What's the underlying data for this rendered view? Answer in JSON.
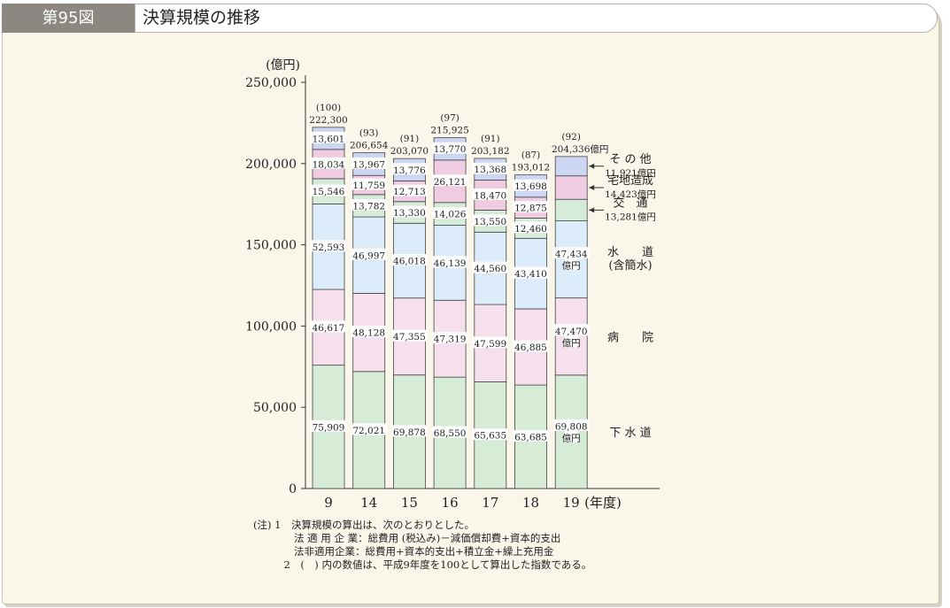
{
  "figure": {
    "number": "第95図",
    "title": "決算規模の推移"
  },
  "chart_data": {
    "type": "bar",
    "stacked": true,
    "unit_label": "(億円)",
    "x_axis_suffix": "(年度)",
    "categories": [
      "9",
      "14",
      "15",
      "16",
      "17",
      "18",
      "19"
    ],
    "ylim": [
      0,
      250000
    ],
    "yticks": [
      0,
      50000,
      100000,
      150000,
      200000,
      250000
    ],
    "ytick_labels": [
      "0",
      "50,000",
      "100,000",
      "150,000",
      "200,000",
      "250,000"
    ],
    "totals": [
      222300,
      206654,
      203070,
      215925,
      203182,
      193012,
      204336
    ],
    "total_labels": [
      "222,300",
      "206,654",
      "203,070",
      "215,925",
      "203,182",
      "193,012",
      "204,336億円"
    ],
    "index_labels": [
      "(100)",
      "(93)",
      "(91)",
      "(97)",
      "(91)",
      "(87)",
      "(92)"
    ],
    "series": [
      {
        "key": "sewer",
        "color": "#d6ecd6",
        "values": [
          75909,
          72021,
          69878,
          68550,
          65635,
          63685,
          69808
        ],
        "value_labels": [
          "75,909",
          "72,021",
          "69,878",
          "68,550",
          "65,635",
          "63,685",
          "69,808\n億円"
        ]
      },
      {
        "key": "hospital",
        "color": "#f6e0ee",
        "values": [
          46617,
          48128,
          47355,
          47319,
          47599,
          46885,
          47470
        ],
        "value_labels": [
          "46,617",
          "48,128",
          "47,355",
          "47,319",
          "47,599",
          "46,885",
          "47,470\n億円"
        ]
      },
      {
        "key": "water",
        "color": "#dcecfa",
        "values": [
          52593,
          46997,
          46018,
          46139,
          44560,
          43410,
          47434
        ],
        "value_labels": [
          "52,593",
          "46,997",
          "46,018",
          "46,139",
          "44,560",
          "43,410",
          "47,434\n億円"
        ]
      },
      {
        "key": "transport",
        "color": "#d4ecd8",
        "values": [
          15546,
          13782,
          13330,
          14026,
          13550,
          12460,
          13281
        ],
        "value_labels": [
          "15,546",
          "13,782",
          "13,330",
          "14,026",
          "13,550",
          "12,460",
          ""
        ]
      },
      {
        "key": "housing",
        "color": "#f0cce3",
        "values": [
          18034,
          11759,
          12713,
          26121,
          18470,
          12875,
          14423
        ],
        "value_labels": [
          "18,034",
          "11,759",
          "12,713",
          "26,121",
          "18,470",
          "12,875",
          ""
        ]
      },
      {
        "key": "other",
        "color": "#ccd6f2",
        "values": [
          13601,
          13967,
          13776,
          13770,
          13368,
          13698,
          11921
        ],
        "value_labels": [
          "13,601",
          "13,967",
          "13,776",
          "13,770",
          "13,368",
          "13,698",
          ""
        ]
      }
    ],
    "side_labels": [
      {
        "series": "other",
        "name": "そ の 他",
        "value": "11,921億円"
      },
      {
        "series": "housing",
        "name": "宅地造成",
        "value": "14,423億円"
      },
      {
        "series": "transport",
        "name": "交　通",
        "value": "13,281億円"
      },
      {
        "series": "water",
        "name": "水　　道",
        "value": "(含簡水)"
      },
      {
        "series": "hospital",
        "name": "病　　院",
        "value": ""
      },
      {
        "series": "sewer",
        "name": "下 水 道",
        "value": ""
      }
    ]
  },
  "notes": [
    "(注) 1　決算規模の算出は、次のとおりとした。",
    "　　　　法 適 用 企 業：総費用 (税込み)－減価償却費+資本的支出",
    "　　　　法非適用企業：総費用+資本的支出+積立金+繰上充用金",
    "　　　2　(　) 内の数値は、平成9年度を100として算出した指数である。"
  ]
}
